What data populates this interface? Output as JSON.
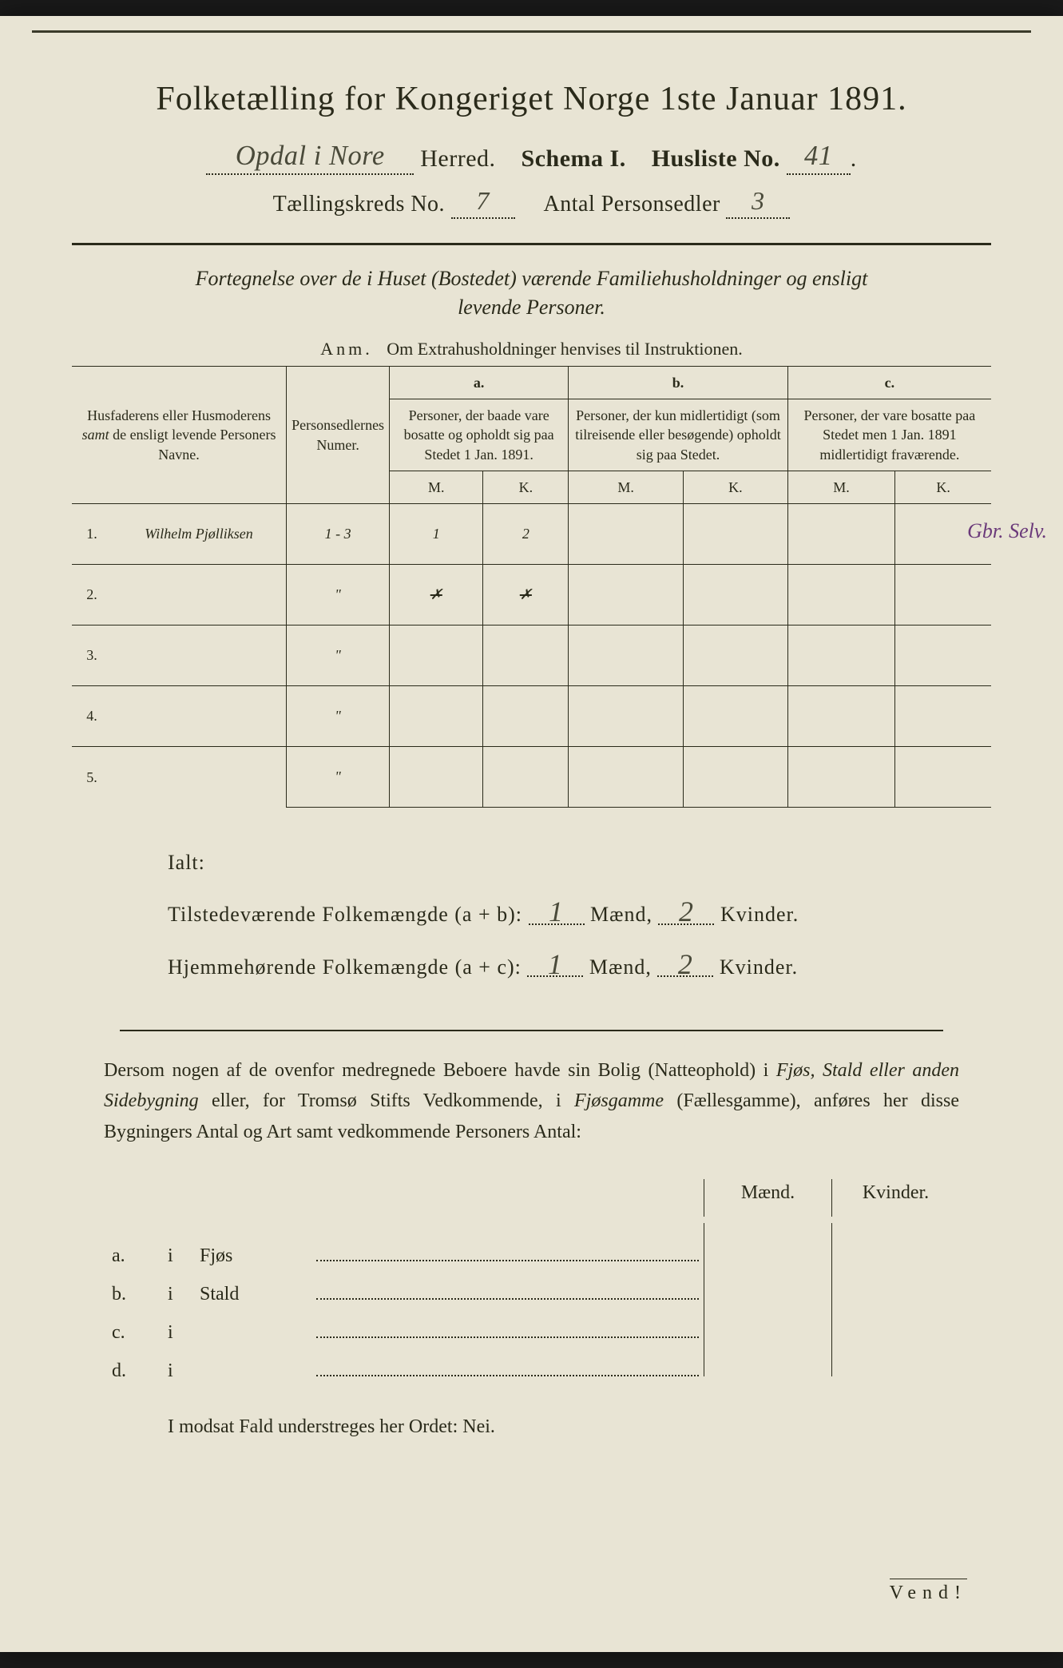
{
  "colors": {
    "page_bg": "#e8e4d4",
    "outer_bg": "#1a1a1a",
    "text": "#2a2a1a",
    "handwriting": "#4a4a3a",
    "purple_ink": "#6b3a7a"
  },
  "typography": {
    "title_fontsize": 42,
    "header_fontsize": 30,
    "body_fontsize": 24,
    "table_header_fontsize": 18,
    "handwritten_fontsize": 34
  },
  "header": {
    "title": "Folketælling for Kongeriget Norge 1ste Januar 1891.",
    "herred_value": "Opdal i Nore",
    "herred_label": "Herred.",
    "schema_label": "Schema I.",
    "husliste_label": "Husliste No.",
    "husliste_value": "41",
    "kreds_label": "Tællingskreds No.",
    "kreds_value": "7",
    "antal_label": "Antal Personsedler",
    "antal_value": "3"
  },
  "subtitle": {
    "line1": "Fortegnelse over de i Huset (Bostedet) værende Familiehusholdninger og ensligt",
    "line2": "levende Personer.",
    "anm_label": "Anm.",
    "anm_text": "Om Extrahusholdninger henvises til Instruktionen."
  },
  "table": {
    "columns": {
      "col1": "Husfaderens eller Husmoderens samt de ensligt levende Personers Navne.",
      "col1_italic": "samt",
      "col2": "Personsedlernes Numer.",
      "col_a_label": "a.",
      "col_a": "Personer, der baade vare bosatte og opholdt sig paa Stedet 1 Jan. 1891.",
      "col_b_label": "b.",
      "col_b": "Personer, der kun midlertidigt (som tilreisende eller besøgende) opholdt sig paa Stedet.",
      "col_c_label": "c.",
      "col_c": "Personer, der vare bosatte paa Stedet men 1 Jan. 1891 midlertidigt fraværende.",
      "m": "M.",
      "k": "K."
    },
    "rows": [
      {
        "num": "1.",
        "name": "Wilhelm Pjølliksen",
        "sedler": "1 - 3",
        "a_m": "1",
        "a_k": "2",
        "b_m": "",
        "b_k": "",
        "c_m": "",
        "c_k": ""
      },
      {
        "num": "2.",
        "name": "",
        "sedler": "\"",
        "a_m": "✗",
        "a_k": "✗",
        "b_m": "",
        "b_k": "",
        "c_m": "",
        "c_k": "",
        "struck": true
      },
      {
        "num": "3.",
        "name": "",
        "sedler": "\"",
        "a_m": "",
        "a_k": "",
        "b_m": "",
        "b_k": "",
        "c_m": "",
        "c_k": ""
      },
      {
        "num": "4.",
        "name": "",
        "sedler": "\"",
        "a_m": "",
        "a_k": "",
        "b_m": "",
        "b_k": "",
        "c_m": "",
        "c_k": ""
      },
      {
        "num": "5.",
        "name": "",
        "sedler": "\"",
        "a_m": "",
        "a_k": "",
        "b_m": "",
        "b_k": "",
        "c_m": "",
        "c_k": ""
      }
    ],
    "margin_note": "Gbr. Selv."
  },
  "totals": {
    "ialt": "Ialt:",
    "line1_label": "Tilstedeværende Folkemængde (a + b):",
    "line2_label": "Hjemmehørende Folkemængde (a + c):",
    "maend": "Mænd,",
    "kvinder": "Kvinder.",
    "present_m": "1",
    "present_k": "2",
    "resident_m": "1",
    "resident_k": "2"
  },
  "paragraph": {
    "text": "Dersom nogen af de ovenfor medregnede Beboere havde sin Bolig (Natteophold) i Fjøs, Stald eller anden Sidebygning eller, for Tromsø Stifts Vedkommende, i Fjøsgamme (Fællesgamme), anføres her disse Bygningers Antal og Art samt vedkommende Personers Antal:"
  },
  "bottom_table": {
    "col_m": "Mænd.",
    "col_k": "Kvinder.",
    "rows": [
      {
        "label": "a.",
        "i": "i",
        "type": "Fjøs"
      },
      {
        "label": "b.",
        "i": "i",
        "type": "Stald"
      },
      {
        "label": "c.",
        "i": "i",
        "type": ""
      },
      {
        "label": "d.",
        "i": "i",
        "type": ""
      }
    ]
  },
  "nei": "I modsat Fald understreges her Ordet: Nei.",
  "vend": "Vend!"
}
